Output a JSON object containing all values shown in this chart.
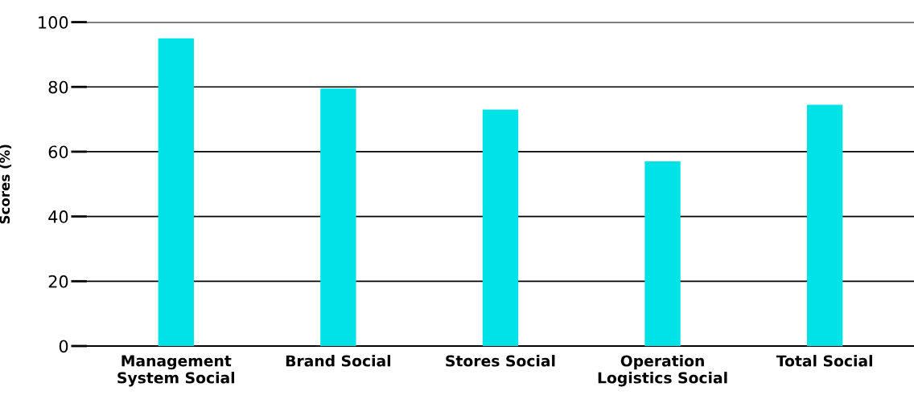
{
  "chart_data": {
    "type": "bar",
    "ylabel": "Scores (%)",
    "categories": [
      "Management\nSystem Social",
      "Brand Social",
      "Stores Social",
      "Operation\nLogistics Social",
      "Total Social"
    ],
    "values": [
      95,
      79.5,
      73,
      57,
      74.5
    ],
    "color": "#00e3e6",
    "ylim": [
      0,
      100
    ],
    "yticks": [
      0,
      20,
      40,
      60,
      80,
      100
    ],
    "grid": "y",
    "legend": false
  }
}
